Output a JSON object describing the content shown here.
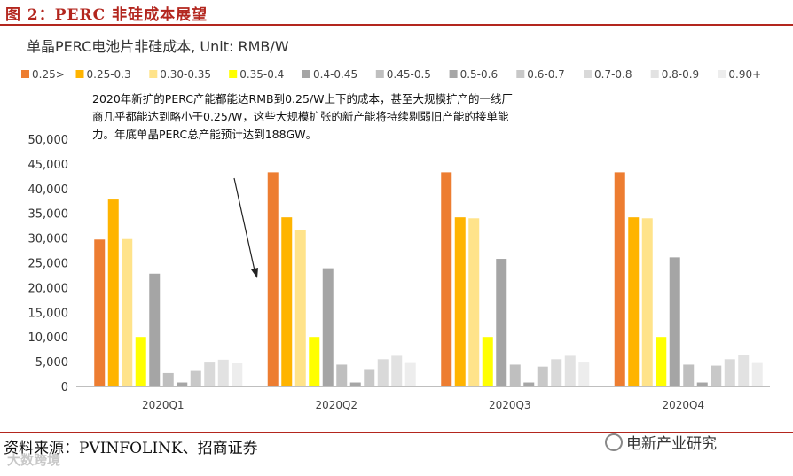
{
  "figure_label": "图 2：PERC 非硅成本展望",
  "source": "资料来源：PVINFOLINK、招商证券",
  "brand": "电新产业研究",
  "watermark": "大数跨境",
  "chart_data": {
    "type": "bar",
    "title": "单晶PERC电池片非硅成本, Unit: RMB/W",
    "annotation": [
      "2020年新扩的PERC产能都能达RMB到0.25/W上下的成本，甚至大规模扩产的一线厂",
      "商几乎都能达到略小于0.25/W，这些大规模扩张的新产能将持续剔弱旧产能的接单能",
      "力。年底单晶PERC总产能预计达到188GW。"
    ],
    "categories": [
      "2020Q1",
      "2020Q2",
      "2020Q3",
      "2020Q4"
    ],
    "ylim": [
      0,
      50000
    ],
    "yticks": [
      "0",
      "5,000",
      "10,000",
      "15,000",
      "20,000",
      "25,000",
      "30,000",
      "35,000",
      "40,000",
      "45,000",
      "50,000"
    ],
    "ytick_values": [
      0,
      5000,
      10000,
      15000,
      20000,
      25000,
      30000,
      35000,
      40000,
      45000,
      50000
    ],
    "legend_position": "top",
    "grid": false,
    "series": [
      {
        "name": "0.25>",
        "color": "#ED7D31",
        "values": [
          29700,
          43300,
          43300,
          43300
        ]
      },
      {
        "name": "0.25-0.3",
        "color": "#FFB400",
        "values": [
          37800,
          34200,
          34200,
          34200
        ]
      },
      {
        "name": "0.30-0.35",
        "color": "#FFE38A",
        "values": [
          29800,
          31700,
          34000,
          34000
        ]
      },
      {
        "name": "0.35-0.4",
        "color": "#FFFF00",
        "values": [
          10000,
          10000,
          10000,
          10000
        ]
      },
      {
        "name": "0.4-0.45",
        "color": "#A5A5A5",
        "values": [
          22800,
          23900,
          25800,
          26100
        ]
      },
      {
        "name": "0.45-0.5",
        "color": "#BFBFBF",
        "values": [
          2700,
          4400,
          4400,
          4400
        ]
      },
      {
        "name": "0.5-0.6",
        "color": "#A6A6A6",
        "values": [
          800,
          800,
          800,
          800
        ]
      },
      {
        "name": "0.6-0.7",
        "color": "#C8C8C8",
        "values": [
          3300,
          3500,
          4000,
          4200
        ]
      },
      {
        "name": "0.7-0.8",
        "color": "#D9D9D9",
        "values": [
          5000,
          5500,
          5500,
          5500
        ]
      },
      {
        "name": "0.8-0.9",
        "color": "#E2E2E2",
        "values": [
          5400,
          6200,
          6200,
          6400
        ]
      },
      {
        "name": "0.90+",
        "color": "#EDEDED",
        "values": [
          4700,
          4900,
          5000,
          4900
        ]
      }
    ]
  }
}
